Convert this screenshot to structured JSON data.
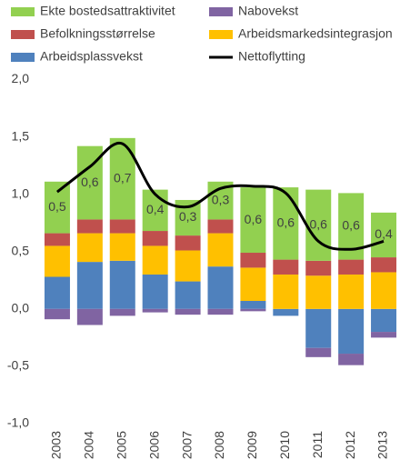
{
  "chart_data": {
    "type": "bar",
    "categories": [
      "2003",
      "2004",
      "2005",
      "2006",
      "2007",
      "2008",
      "2009",
      "2010",
      "2011",
      "2012",
      "2013"
    ],
    "series": [
      {
        "name": "Arbeidsplassvekst",
        "color": "#4f81bd",
        "values": [
          0.28,
          0.41,
          0.42,
          0.3,
          0.24,
          0.37,
          0.07,
          -0.06,
          -0.34,
          -0.39,
          -0.2
        ]
      },
      {
        "name": "Arbeidsmarkedsintegrasjon",
        "color": "#ffc000",
        "values": [
          0.27,
          0.25,
          0.24,
          0.25,
          0.27,
          0.29,
          0.29,
          0.3,
          0.29,
          0.3,
          0.32
        ]
      },
      {
        "name": "Befolkningsstørrelse",
        "color": "#c0504d",
        "values": [
          0.11,
          0.12,
          0.12,
          0.13,
          0.13,
          0.12,
          0.13,
          0.13,
          0.13,
          0.13,
          0.13
        ]
      },
      {
        "name": "Ekte bostedsattraktivitet",
        "color": "#92d050",
        "values": [
          0.45,
          0.64,
          0.71,
          0.36,
          0.31,
          0.33,
          0.57,
          0.63,
          0.62,
          0.58,
          0.39
        ],
        "value_labels": [
          "0,5",
          "0,6",
          "0,7",
          "0,4",
          "0,3",
          "0,3",
          "0,6",
          "0,6",
          "0,6",
          "0,6",
          "0,4"
        ]
      },
      {
        "name": "Nabovekst",
        "color": "#8064a2",
        "values": [
          -0.09,
          -0.14,
          -0.06,
          -0.03,
          -0.05,
          -0.05,
          -0.02,
          0,
          -0.08,
          -0.1,
          -0.05
        ]
      },
      {
        "name": "Nettoflytting",
        "type": "line",
        "color": "#000000",
        "values": [
          1.02,
          1.24,
          1.44,
          1.0,
          0.89,
          1.05,
          1.07,
          1.01,
          0.59,
          0.52,
          0.59
        ]
      }
    ],
    "ylim": [
      -1,
      2
    ],
    "yticks": [
      {
        "value": -1,
        "label": "-1,0"
      },
      {
        "value": -0.5,
        "label": "-0,5"
      },
      {
        "value": 0,
        "label": "0,0"
      },
      {
        "value": 0.5,
        "label": "0,5"
      },
      {
        "value": 1,
        "label": "1,0"
      },
      {
        "value": 1.5,
        "label": "1,5"
      },
      {
        "value": 2,
        "label": "2,0"
      }
    ]
  }
}
